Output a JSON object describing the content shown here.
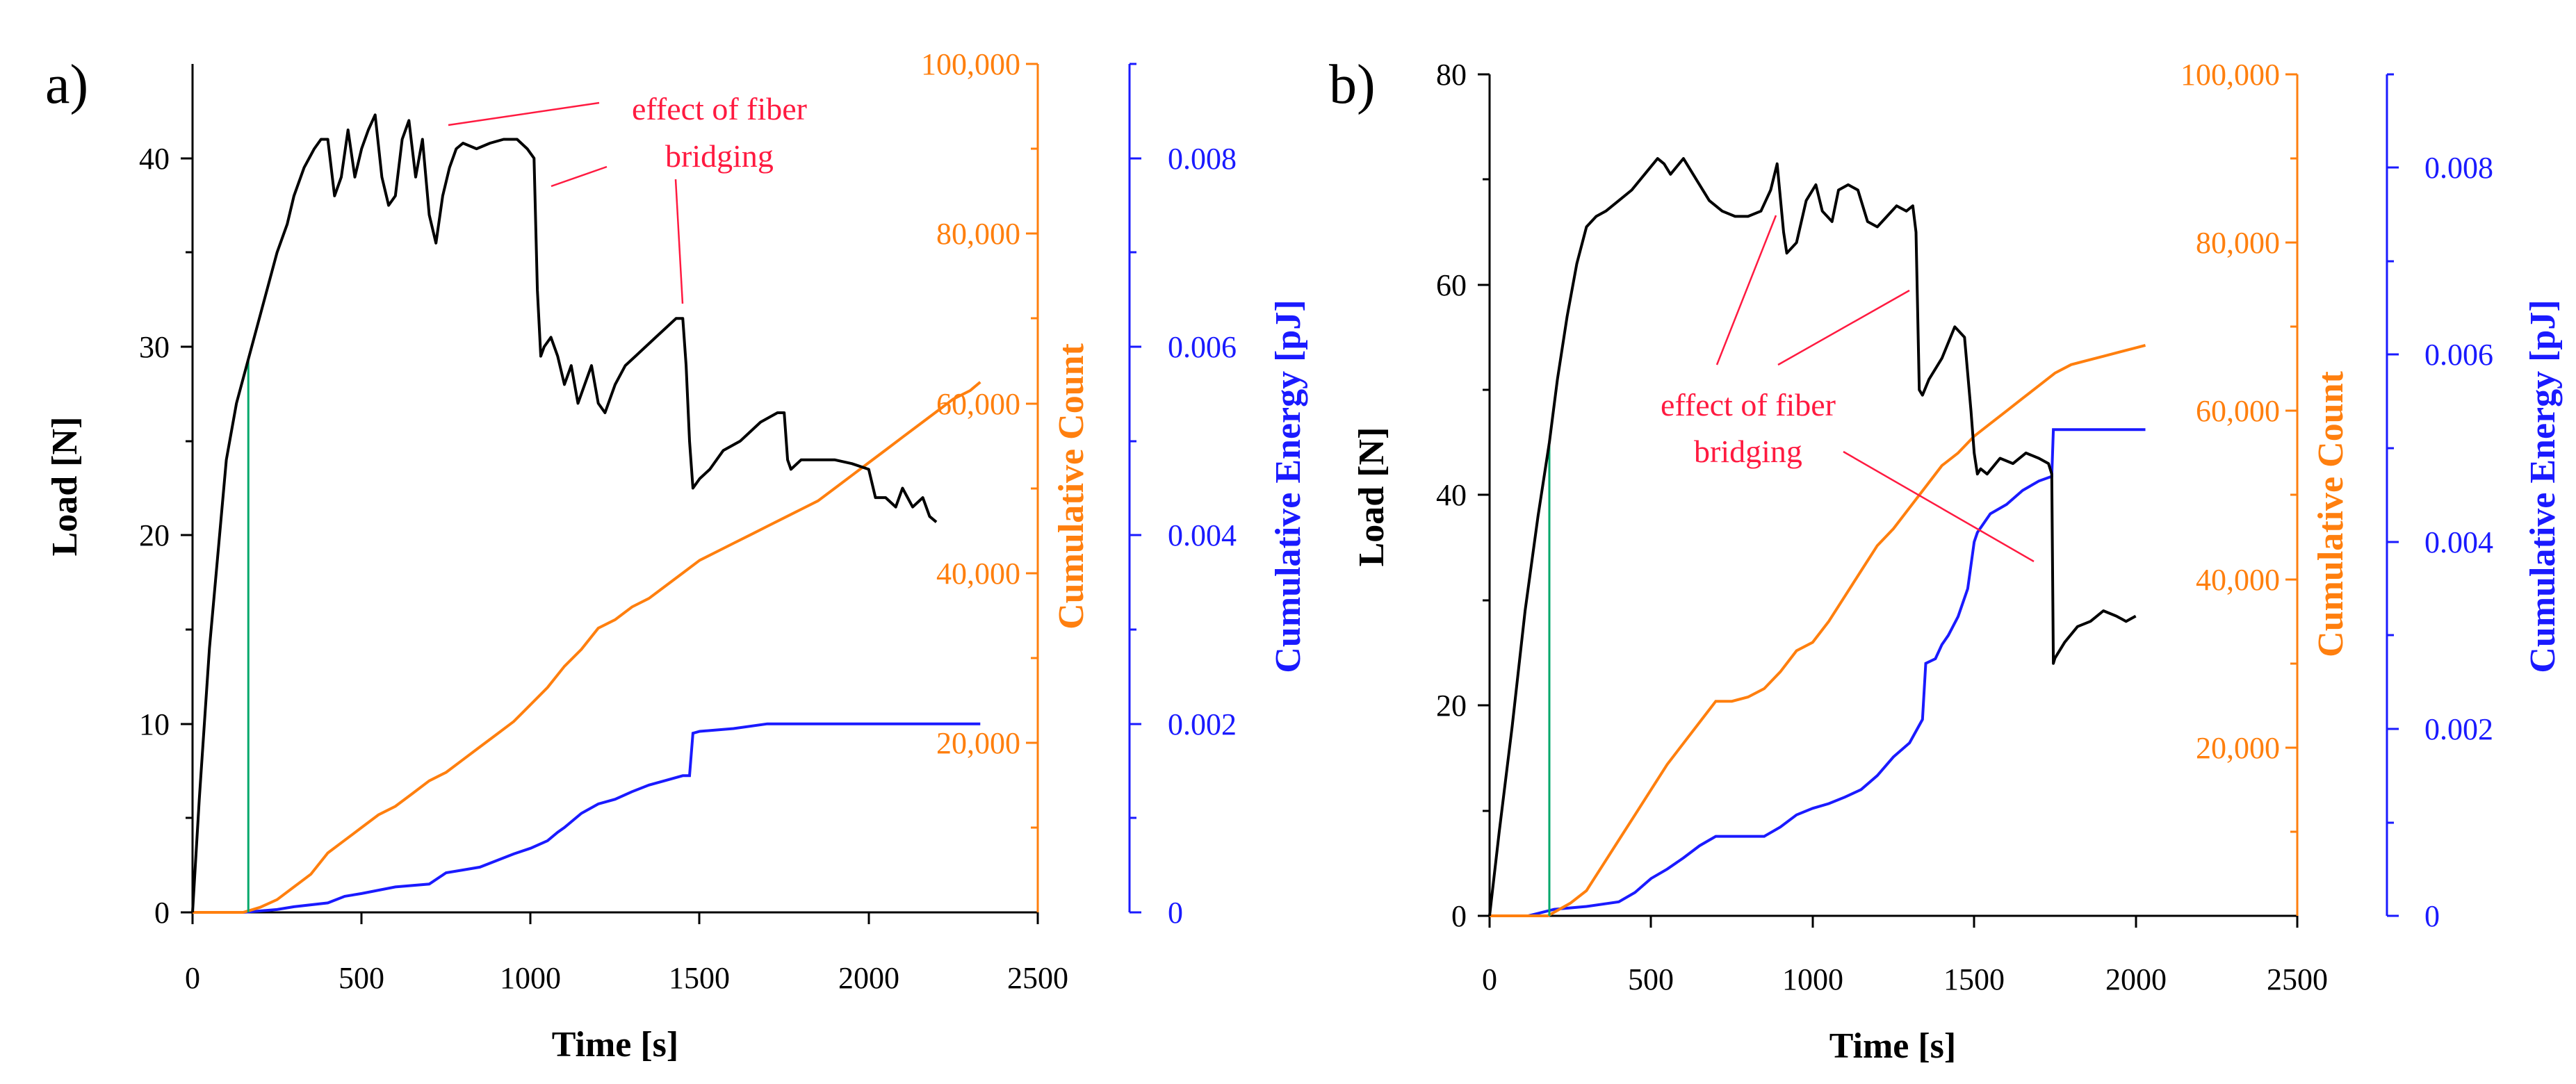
{
  "colors": {
    "load": "#000000",
    "count": "#ff7f0e",
    "energy": "#1a1aff",
    "annotation": "#ff1a40",
    "marker": "#00a86b"
  },
  "chart_data": [
    {
      "type": "line",
      "panel_label": "a)",
      "xlabel": "Time [s]",
      "ylabel_left": "Load [N]",
      "ylabel_count": "Cumulative Count",
      "ylabel_energy": "Cumulative Energy [pJ]",
      "xlim": [
        0,
        2500
      ],
      "ylim_left": [
        0,
        45
      ],
      "ylim_count": [
        0,
        100000
      ],
      "ylim_energy": [
        0,
        0.009
      ],
      "xticks": [
        "0",
        "500",
        "1000",
        "1500",
        "2000",
        "2500"
      ],
      "yticks_left": [
        "0",
        "10",
        "20",
        "30",
        "40"
      ],
      "yticks_count": [
        "20,000",
        "40,000",
        "60,000",
        "80,000",
        "100,000"
      ],
      "yticks_energy": [
        "0",
        "0.002",
        "0.004",
        "0.006",
        "0.008"
      ],
      "annotation_lines": [
        "effect of fiber",
        "bridging"
      ],
      "marker_time": 165,
      "series": [
        {
          "name": "Load",
          "axis": "left",
          "x": [
            0,
            20,
            50,
            80,
            100,
            130,
            160,
            190,
            220,
            250,
            280,
            300,
            330,
            360,
            380,
            400,
            420,
            440,
            460,
            480,
            500,
            520,
            540,
            560,
            580,
            600,
            620,
            640,
            660,
            680,
            700,
            720,
            740,
            760,
            780,
            800,
            840,
            880,
            920,
            960,
            990,
            1010,
            1020,
            1030,
            1040,
            1060,
            1080,
            1100,
            1120,
            1140,
            1160,
            1180,
            1200,
            1220,
            1250,
            1280,
            1310,
            1340,
            1370,
            1400,
            1430,
            1450,
            1460,
            1470,
            1480,
            1500,
            1530,
            1570,
            1620,
            1680,
            1730,
            1750,
            1760,
            1770,
            1800,
            1850,
            1900,
            1950,
            2000,
            2020,
            2050,
            2080,
            2100,
            2130,
            2160,
            2180,
            2200
          ],
          "y": [
            0,
            6,
            14,
            20,
            24,
            27,
            29,
            31,
            33,
            35,
            36.5,
            38,
            39.5,
            40.5,
            41,
            41,
            38,
            39,
            41.5,
            39,
            40.5,
            41.5,
            42.3,
            39,
            37.5,
            38,
            41,
            42,
            39,
            41,
            37,
            35.5,
            38,
            39.5,
            40.5,
            40.8,
            40.5,
            40.8,
            41,
            41,
            40.5,
            40,
            33,
            29.5,
            30,
            30.5,
            29.5,
            28,
            29,
            27,
            28,
            29,
            27,
            26.5,
            28,
            29,
            29.5,
            30,
            30.5,
            31,
            31.5,
            31.5,
            29,
            25,
            22.5,
            23,
            23.5,
            24.5,
            25,
            26,
            26.5,
            26.5,
            24,
            23.5,
            24,
            24,
            24,
            23.8,
            23.5,
            22,
            22,
            21.5,
            22.5,
            21.5,
            22,
            21,
            20.7
          ]
        },
        {
          "name": "Cumulative Count",
          "axis": "count",
          "x": [
            0,
            150,
            200,
            250,
            300,
            350,
            400,
            450,
            500,
            550,
            600,
            650,
            700,
            750,
            800,
            850,
            900,
            950,
            1000,
            1050,
            1100,
            1150,
            1200,
            1250,
            1300,
            1350,
            1400,
            1450,
            1500,
            1550,
            1600,
            1650,
            1700,
            1750,
            1800,
            1850,
            1900,
            1950,
            2000,
            2050,
            2100,
            2150,
            2200,
            2250,
            2300,
            2330
          ],
          "y": [
            0,
            0,
            600,
            1500,
            3000,
            4500,
            7000,
            8500,
            10000,
            11500,
            12500,
            14000,
            15500,
            16500,
            18000,
            19500,
            21000,
            22500,
            24500,
            26500,
            29000,
            31000,
            33500,
            34500,
            36000,
            37000,
            38500,
            40000,
            41500,
            42500,
            43500,
            44500,
            45500,
            46500,
            47500,
            48500,
            50000,
            51500,
            53000,
            54500,
            56000,
            57500,
            59000,
            60500,
            61500,
            62500
          ]
        },
        {
          "name": "Cumulative Energy",
          "axis": "energy",
          "x": [
            0,
            150,
            250,
            300,
            400,
            450,
            500,
            600,
            700,
            750,
            800,
            850,
            900,
            950,
            1000,
            1050,
            1080,
            1100,
            1150,
            1200,
            1250,
            1300,
            1350,
            1400,
            1450,
            1470,
            1480,
            1500,
            1600,
            1700,
            1750,
            1800,
            2000,
            2200,
            2330
          ],
          "y": [
            0,
            0,
            3e-05,
            6e-05,
            0.0001,
            0.00017,
            0.0002,
            0.00027,
            0.0003,
            0.00042,
            0.00045,
            0.00048,
            0.00055,
            0.00062,
            0.00068,
            0.00076,
            0.00085,
            0.0009,
            0.00105,
            0.00115,
            0.0012,
            0.00128,
            0.00135,
            0.0014,
            0.00145,
            0.00145,
            0.0019,
            0.00192,
            0.00195,
            0.002,
            0.002,
            0.002,
            0.002,
            0.002,
            0.002
          ]
        }
      ]
    },
    {
      "type": "line",
      "panel_label": "b)",
      "xlabel": "Time [s]",
      "ylabel_left": "Load [N]",
      "ylabel_count": "Cumulative Count",
      "ylabel_energy": "Cumulative Energy [pJ]",
      "xlim": [
        0,
        2500
      ],
      "ylim_left": [
        0,
        80
      ],
      "ylim_count": [
        0,
        100000
      ],
      "ylim_energy": [
        0,
        0.009
      ],
      "xticks": [
        "0",
        "500",
        "1000",
        "1500",
        "2000",
        "2500"
      ],
      "yticks_left": [
        "0",
        "20",
        "40",
        "60",
        "80"
      ],
      "yticks_count": [
        "20,000",
        "40,000",
        "60,000",
        "80,000",
        "100,000"
      ],
      "yticks_energy": [
        "0",
        "0.002",
        "0.004",
        "0.006",
        "0.008"
      ],
      "annotation_lines": [
        "effect of fiber",
        "bridging"
      ],
      "marker_time": 185,
      "series": [
        {
          "name": "Load",
          "axis": "left",
          "x": [
            0,
            30,
            70,
            110,
            150,
            185,
            210,
            240,
            270,
            300,
            330,
            360,
            400,
            440,
            480,
            520,
            540,
            560,
            600,
            640,
            680,
            720,
            760,
            800,
            840,
            870,
            890,
            910,
            920,
            950,
            980,
            1010,
            1030,
            1060,
            1080,
            1110,
            1140,
            1170,
            1200,
            1230,
            1260,
            1290,
            1310,
            1320,
            1330,
            1340,
            1360,
            1400,
            1440,
            1470,
            1490,
            1500,
            1510,
            1520,
            1540,
            1580,
            1620,
            1660,
            1700,
            1730,
            1740,
            1745,
            1750,
            1780,
            1820,
            1860,
            1900,
            1940,
            1970,
            2000
          ],
          "y": [
            0,
            8,
            18,
            29,
            38,
            45,
            51,
            57,
            62,
            65.5,
            66.5,
            67,
            68,
            69,
            70.5,
            72,
            71.5,
            70.5,
            72,
            70,
            68,
            67,
            66.5,
            66.5,
            67,
            69,
            71.5,
            65,
            63,
            64,
            68,
            69.5,
            67,
            66,
            69,
            69.5,
            69,
            66,
            65.5,
            66.5,
            67.5,
            67,
            67.5,
            65,
            50,
            49.5,
            51,
            53,
            56,
            55,
            48,
            44,
            42,
            42.5,
            42,
            43.5,
            43,
            44,
            43.5,
            43,
            42,
            24,
            24.5,
            26,
            27.5,
            28,
            29,
            28.5,
            28,
            28.5
          ]
        },
        {
          "name": "Cumulative Count",
          "axis": "count",
          "x": [
            0,
            180,
            250,
            300,
            350,
            400,
            450,
            500,
            550,
            600,
            650,
            700,
            750,
            800,
            850,
            900,
            950,
            1000,
            1050,
            1100,
            1150,
            1200,
            1250,
            1300,
            1350,
            1400,
            1450,
            1500,
            1550,
            1600,
            1650,
            1700,
            1750,
            1800,
            1850,
            1900,
            1950,
            2000,
            2030
          ],
          "y": [
            0,
            0,
            1500,
            3000,
            6000,
            9000,
            12000,
            15000,
            18000,
            20500,
            23000,
            25500,
            25500,
            26000,
            27000,
            29000,
            31500,
            32500,
            35000,
            38000,
            41000,
            44000,
            46000,
            48500,
            51000,
            53500,
            55000,
            57000,
            58500,
            60000,
            61500,
            63000,
            64500,
            65500,
            66000,
            66500,
            67000,
            67500,
            67800
          ]
        },
        {
          "name": "Cumulative Energy",
          "axis": "energy",
          "x": [
            0,
            120,
            200,
            300,
            400,
            450,
            500,
            550,
            600,
            650,
            700,
            750,
            800,
            850,
            900,
            950,
            1000,
            1050,
            1100,
            1150,
            1200,
            1250,
            1300,
            1340,
            1350,
            1380,
            1400,
            1420,
            1450,
            1480,
            1500,
            1510,
            1550,
            1600,
            1650,
            1700,
            1740,
            1745,
            1760,
            2030
          ],
          "y": [
            0,
            0,
            7e-05,
            0.0001,
            0.00015,
            0.00025,
            0.0004,
            0.0005,
            0.00062,
            0.00075,
            0.00085,
            0.00085,
            0.00085,
            0.00085,
            0.00095,
            0.00108,
            0.00115,
            0.0012,
            0.00127,
            0.00135,
            0.0015,
            0.0017,
            0.00185,
            0.0021,
            0.0027,
            0.00275,
            0.0029,
            0.003,
            0.0032,
            0.0035,
            0.004,
            0.0041,
            0.0043,
            0.0044,
            0.00455,
            0.00465,
            0.0047,
            0.0052,
            0.0052,
            0.0052
          ]
        }
      ]
    }
  ]
}
